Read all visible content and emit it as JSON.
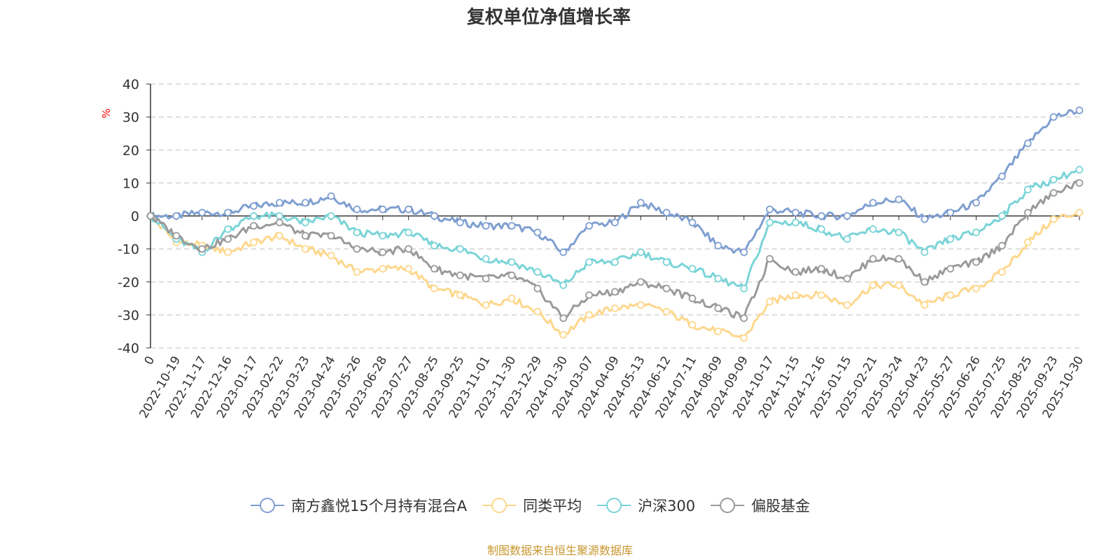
{
  "chart_data": {
    "type": "line",
    "title": "复权单位净值增长率",
    "ylabel": "%",
    "ylabel_color": "#ff0000",
    "ylim": [
      -40,
      40
    ],
    "yticks": [
      40,
      30,
      20,
      10,
      0,
      -10,
      -20,
      -30,
      -40
    ],
    "categories": [
      "0",
      "2022-10-19",
      "2022-11-17",
      "2022-12-16",
      "2023-01-17",
      "2023-02-22",
      "2023-03-23",
      "2023-04-24",
      "2023-05-26",
      "2023-06-28",
      "2023-07-27",
      "2023-08-25",
      "2023-09-25",
      "2023-11-01",
      "2023-11-30",
      "2023-12-29",
      "2024-01-30",
      "2024-03-07",
      "2024-04-09",
      "2024-05-13",
      "2024-06-12",
      "2024-07-11",
      "2024-08-09",
      "2024-09-09",
      "2024-10-17",
      "2024-11-15",
      "2024-12-16",
      "2025-01-15",
      "2025-02-21",
      "2025-03-24",
      "2025-04-23",
      "2025-05-27",
      "2025-06-26",
      "2025-07-25",
      "2025-08-25",
      "2025-09-23",
      "2025-10-30"
    ],
    "grid": true,
    "legend_position": "bottom-center",
    "series": [
      {
        "name": "南方鑫悦15个月持有混合A",
        "color": "#7f9fd1",
        "values": [
          0,
          0,
          1,
          1,
          3,
          4,
          4,
          6,
          2,
          2,
          2,
          0,
          -2,
          -3,
          -3,
          -5,
          -11,
          -3,
          -2,
          4,
          1,
          -2,
          -9,
          -11,
          2,
          1,
          0,
          0,
          4,
          5,
          -1,
          1,
          4,
          12,
          22,
          30,
          32
        ]
      },
      {
        "name": "同类平均",
        "color": "#fdd78c",
        "values": [
          0,
          -8,
          -9,
          -11,
          -8,
          -6,
          -10,
          -12,
          -17,
          -16,
          -16,
          -22,
          -24,
          -27,
          -25,
          -29,
          -36,
          -30,
          -28,
          -27,
          -29,
          -33,
          -35,
          -37,
          -26,
          -24,
          -24,
          -27,
          -21,
          -21,
          -27,
          -24,
          -22,
          -17,
          -8,
          -1,
          1
        ]
      },
      {
        "name": "沪深300",
        "color": "#7ad4d7",
        "values": [
          0,
          -7,
          -11,
          -4,
          0,
          0,
          -2,
          0,
          -5,
          -6,
          -5,
          -9,
          -10,
          -13,
          -14,
          -17,
          -21,
          -14,
          -14,
          -11,
          -14,
          -16,
          -19,
          -22,
          -2,
          -2,
          -4,
          -7,
          -4,
          -5,
          -11,
          -7,
          -5,
          0,
          8,
          11,
          14
        ]
      },
      {
        "name": "偏股基金",
        "color": "#9a9a9a",
        "values": [
          0,
          -6,
          -10,
          -7,
          -3,
          -2,
          -6,
          -6,
          -10,
          -11,
          -10,
          -16,
          -18,
          -19,
          -18,
          -22,
          -31,
          -24,
          -23,
          -20,
          -22,
          -25,
          -28,
          -31,
          -13,
          -17,
          -16,
          -19,
          -13,
          -13,
          -20,
          -16,
          -14,
          -9,
          1,
          7,
          10
        ]
      }
    ]
  },
  "footer": {
    "source": "制图数据来自恒生聚源数据库",
    "source_color": "#c8962d"
  }
}
